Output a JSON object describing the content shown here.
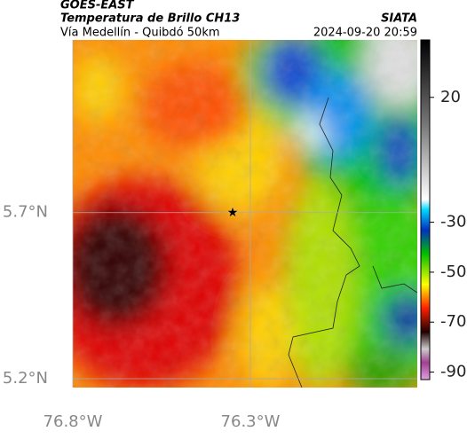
{
  "header": {
    "title": "GOES-EAST",
    "subtitle": "Temperatura de Brillo CH13",
    "route": "Vía Medellín - Quibdó 50km",
    "source": "SIATA",
    "timestamp": "2024-09-20 20:59"
  },
  "map": {
    "xlim": [
      -76.8,
      -75.83
    ],
    "ylim": [
      5.2,
      6.22
    ],
    "xticks": [
      {
        "value": -76.8,
        "label": "76.8°W"
      },
      {
        "value": -76.3,
        "label": "76.3°W"
      }
    ],
    "yticks": [
      {
        "value": 5.7,
        "label": "5.7°N"
      },
      {
        "value": 5.2,
        "label": "5.2°N"
      }
    ]
  },
  "colorbar": {
    "lim": [
      -93,
      43
    ],
    "ticks": [
      20,
      -30,
      -50,
      -70,
      -90
    ]
  }
}
